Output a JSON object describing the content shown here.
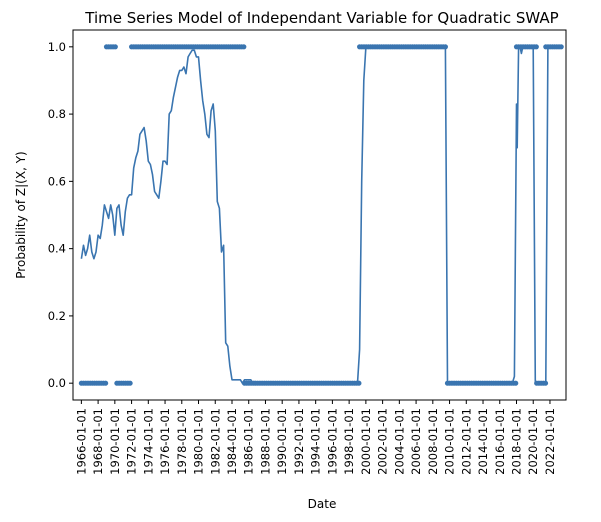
{
  "chart_data": {
    "type": "line",
    "title": "Time Series Model of Independant Variable for Quadratic SWAP",
    "xlabel": "Date",
    "ylabel": "Probability of Z|(X, Y)",
    "xlim": [
      "1965-01-01",
      "2023-12-01"
    ],
    "ylim": [
      -0.05,
      1.05
    ],
    "x_ticks": [
      "1966-01-01",
      "1968-01-01",
      "1970-01-01",
      "1972-01-01",
      "1974-01-01",
      "1976-01-01",
      "1978-01-01",
      "1980-01-01",
      "1982-01-01",
      "1984-01-01",
      "1986-01-01",
      "1988-01-01",
      "1990-01-01",
      "1992-01-01",
      "1994-01-01",
      "1996-01-01",
      "1998-01-01",
      "2000-01-01",
      "2002-01-01",
      "2004-01-01",
      "2006-01-01",
      "2008-01-01",
      "2010-01-01",
      "2012-01-01",
      "2014-01-01",
      "2016-01-01",
      "2018-01-01",
      "2020-01-01",
      "2022-01-01"
    ],
    "y_ticks": [
      "0.0",
      "0.2",
      "0.4",
      "0.6",
      "0.8",
      "1.0"
    ],
    "grid": false,
    "colors": {
      "series": "#3a75b0",
      "points": "#3a75b0"
    },
    "series": [
      {
        "type": "line",
        "x": [
          "1966-01-01",
          "1966-04-01",
          "1966-07-01",
          "1966-10-01",
          "1967-01-01",
          "1967-04-01",
          "1967-07-01",
          "1967-10-01",
          "1968-01-01",
          "1968-04-01",
          "1968-07-01",
          "1968-10-01",
          "1969-01-01",
          "1969-04-01",
          "1969-07-01",
          "1969-10-01",
          "1970-01-01",
          "1970-04-01",
          "1970-07-01",
          "1970-10-01",
          "1971-01-01",
          "1971-04-01",
          "1971-07-01",
          "1971-10-01",
          "1972-01-01",
          "1972-04-01",
          "1972-07-01",
          "1972-10-01",
          "1973-01-01",
          "1973-04-01",
          "1973-07-01",
          "1973-10-01",
          "1974-01-01",
          "1974-04-01",
          "1974-07-01",
          "1974-10-01",
          "1975-01-01",
          "1975-04-01",
          "1975-07-01",
          "1975-10-01",
          "1976-01-01",
          "1976-04-01",
          "1976-07-01",
          "1976-10-01",
          "1977-01-01",
          "1977-04-01",
          "1977-07-01",
          "1977-10-01",
          "1978-01-01",
          "1978-04-01",
          "1978-07-01",
          "1978-10-01",
          "1979-01-01",
          "1979-04-01",
          "1979-07-01",
          "1979-10-01",
          "1980-01-01",
          "1980-04-01",
          "1980-07-01",
          "1980-10-01",
          "1981-01-01",
          "1981-04-01",
          "1981-07-01",
          "1981-10-01",
          "1982-01-01",
          "1982-04-01",
          "1982-07-01",
          "1982-10-01",
          "1983-01-01",
          "1983-04-01",
          "1983-07-01",
          "1983-10-01",
          "1984-01-01",
          "1984-04-01",
          "1984-07-01",
          "1984-10-01",
          "1985-01-01",
          "1985-04-01",
          "1985-07-01",
          "1985-10-01",
          "1986-01-01",
          "1986-04-01",
          "1986-07-01",
          "1986-10-01",
          "1987-01-01",
          "1987-07-01",
          "1988-01-01",
          "1988-07-01",
          "1989-01-01",
          "1989-07-01",
          "1990-01-01",
          "1990-07-01",
          "1991-01-01",
          "1992-01-01",
          "1994-01-01",
          "1996-01-01",
          "1998-01-01",
          "1999-01-01",
          "1999-04-01",
          "1999-07-01",
          "1999-10-01",
          "2000-01-01",
          "2000-04-01",
          "2002-01-01",
          "2004-01-01",
          "2006-01-01",
          "2008-01-01",
          "2009-01-01",
          "2009-04-01",
          "2009-07-01",
          "2009-10-01",
          "2012-01-01",
          "2014-01-01",
          "2016-01-01",
          "2017-01-01",
          "2017-04-01",
          "2017-07-01",
          "2017-10-01",
          "2018-01-01",
          "2018-02-01",
          "2018-04-01",
          "2018-06-01",
          "2018-08-01",
          "2018-10-01",
          "2019-01-01",
          "2019-04-01",
          "2019-07-01",
          "2019-10-01",
          "2020-01-01",
          "2020-04-01",
          "2020-07-01",
          "2020-10-01",
          "2021-01-01",
          "2021-04-01",
          "2021-07-01",
          "2021-10-01",
          "2022-01-01",
          "2022-07-01",
          "2023-01-01",
          "2023-06-01"
        ],
        "y": [
          0.37,
          0.41,
          0.38,
          0.4,
          0.44,
          0.39,
          0.37,
          0.39,
          0.44,
          0.43,
          0.47,
          0.53,
          0.51,
          0.49,
          0.53,
          0.5,
          0.44,
          0.52,
          0.53,
          0.47,
          0.44,
          0.51,
          0.55,
          0.56,
          0.56,
          0.64,
          0.67,
          0.69,
          0.74,
          0.75,
          0.76,
          0.72,
          0.66,
          0.65,
          0.62,
          0.57,
          0.56,
          0.55,
          0.6,
          0.66,
          0.66,
          0.65,
          0.8,
          0.81,
          0.85,
          0.88,
          0.91,
          0.93,
          0.93,
          0.94,
          0.92,
          0.97,
          0.98,
          0.99,
          0.99,
          0.97,
          0.97,
          0.9,
          0.84,
          0.8,
          0.74,
          0.73,
          0.81,
          0.83,
          0.75,
          0.54,
          0.52,
          0.39,
          0.41,
          0.12,
          0.11,
          0.05,
          0.01,
          0.01,
          0.01,
          0.01,
          0.01,
          0.0,
          0.01,
          0.01,
          0.01,
          0.01,
          0.0,
          0.0,
          0.0,
          0.0,
          0.0,
          0.0,
          0.0,
          0.0,
          0.0,
          0.0,
          0.0,
          0.0,
          0.0,
          0.0,
          0.0,
          0.0,
          0.1,
          0.6,
          0.9,
          1.0,
          1.0,
          1.0,
          1.0,
          1.0,
          1.0,
          1.0,
          1.0,
          1.0,
          0.0,
          0.0,
          0.0,
          0.0,
          0.0,
          0.0,
          0.0,
          0.02,
          0.83,
          0.7,
          1.0,
          1.0,
          0.98,
          1.0,
          1.0,
          1.0,
          1.0,
          1.0,
          1.0,
          0.0,
          0.0,
          0.0,
          0.0,
          0.0,
          0.0,
          1.0,
          1.0,
          1.0,
          1.0,
          1.0
        ]
      },
      {
        "type": "scatter",
        "segments": [
          {
            "from": "1966-01-01",
            "to": "1969-01-01",
            "y": 0
          },
          {
            "from": "1969-01-01",
            "to": "1970-04-01",
            "y": 1
          },
          {
            "from": "1970-04-01",
            "to": "1972-01-01",
            "y": 0
          },
          {
            "from": "1972-01-01",
            "to": "1985-07-01",
            "y": 1
          },
          {
            "from": "1985-07-01",
            "to": "1999-04-01",
            "y": 0
          },
          {
            "from": "1999-04-01",
            "to": "2009-10-01",
            "y": 1
          },
          {
            "from": "2009-10-01",
            "to": "2018-01-01",
            "y": 0
          },
          {
            "from": "2018-01-01",
            "to": "2020-06-01",
            "y": 1
          },
          {
            "from": "2020-06-01",
            "to": "2021-07-01",
            "y": 0
          },
          {
            "from": "2021-07-01",
            "to": "2023-06-01",
            "y": 1
          }
        ]
      }
    ]
  }
}
